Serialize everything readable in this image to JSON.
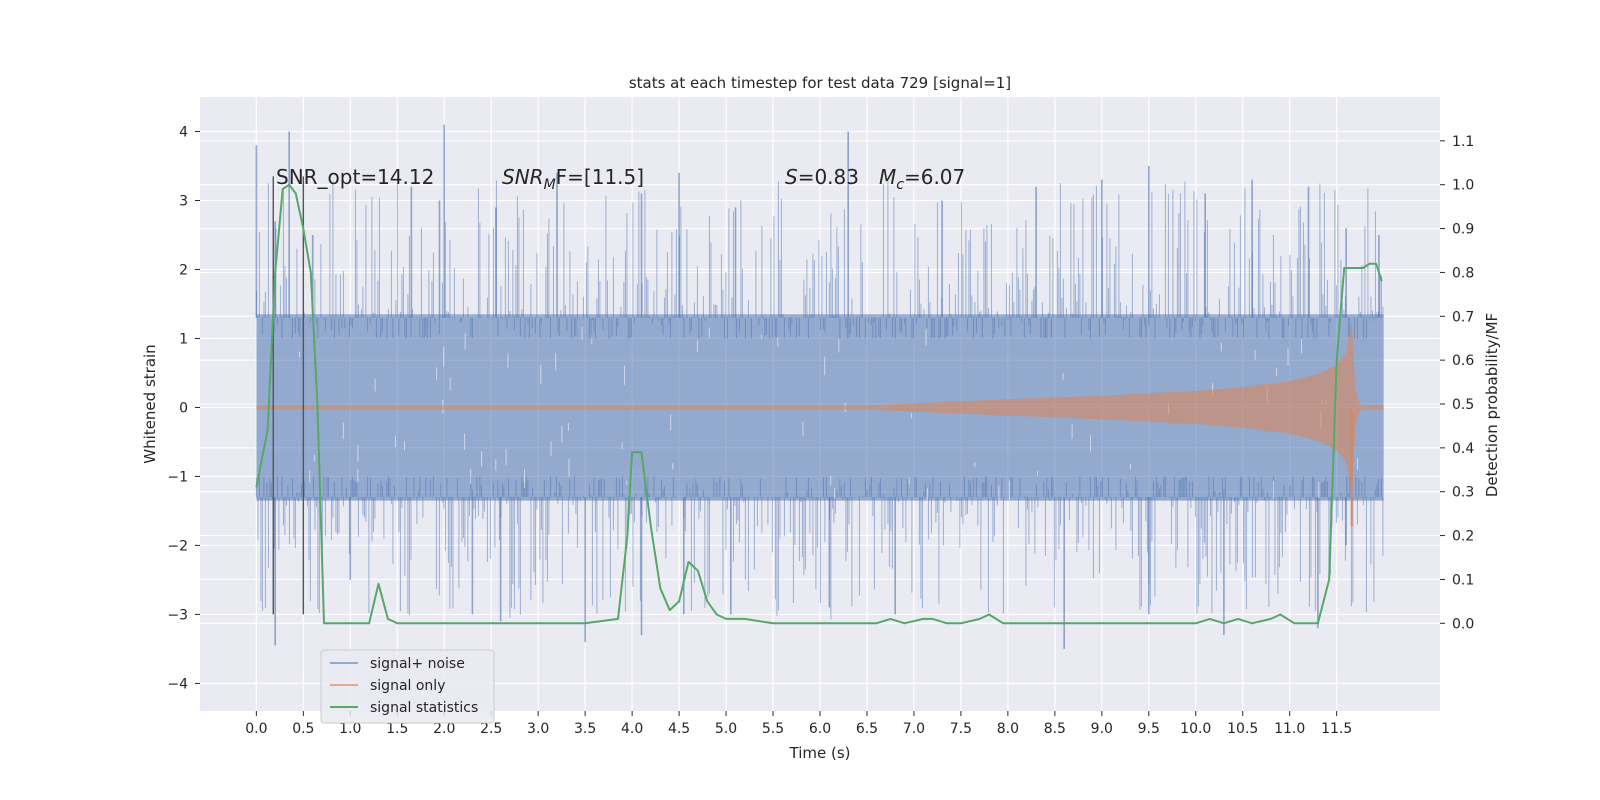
{
  "chart_data": {
    "type": "line",
    "title": "stats at each timestep for test data 729 [signal=1]",
    "xlabel": "Time (s)",
    "ylabel_left": "Whitened strain",
    "ylabel_right": "Detection probability/MF",
    "xlim": [
      -0.6,
      12.6
    ],
    "ylim_left": [
      -4.4,
      4.5
    ],
    "ylim_right": [
      -0.2,
      1.2
    ],
    "x_ticks": [
      "0.0",
      "0.5",
      "1.0",
      "1.5",
      "2.0",
      "2.5",
      "3.0",
      "3.5",
      "4.0",
      "4.5",
      "5.0",
      "5.5",
      "6.0",
      "6.5",
      "7.0",
      "7.5",
      "8.0",
      "8.5",
      "9.0",
      "9.5",
      "10.0",
      "10.5",
      "11.0",
      "11.5"
    ],
    "y_ticks_left": [
      4,
      3,
      2,
      1,
      0,
      -1,
      -2,
      -3,
      -4
    ],
    "y_ticks_right": [
      "1.1",
      "1.0",
      "0.9",
      "0.8",
      "0.7",
      "0.6",
      "0.5",
      "0.4",
      "0.3",
      "0.2",
      "0.1",
      "0.0"
    ],
    "grid": true,
    "annotations": {
      "snr_opt": "SNR_opt=14.12",
      "snr_mf_label": "SNR",
      "snr_mf_sub": "M",
      "snr_mf_rest": "F=[11.5]",
      "s_label": "S",
      "s_value": "=0.83",
      "mc_label": "M",
      "mc_sub": "c",
      "mc_value": "=6.07"
    },
    "vertical_markers": [
      0.18,
      0.5
    ],
    "legend": {
      "placement": "lower-left",
      "entries": [
        "signal+ noise",
        "signal only",
        "signal statistics"
      ]
    },
    "series": [
      {
        "name": "signal+ noise",
        "color": "#4c72b0",
        "t_range": [
          0.0,
          12.0
        ],
        "band": [
          -1.35,
          1.35
        ],
        "spikes_up": [
          [
            0.0,
            3.8
          ],
          [
            0.2,
            2.7
          ],
          [
            0.35,
            4.0
          ],
          [
            0.6,
            2.5
          ],
          [
            1.65,
            3.2
          ],
          [
            1.95,
            3.0
          ],
          [
            2.0,
            4.1
          ],
          [
            2.55,
            2.9
          ],
          [
            3.2,
            3.4
          ],
          [
            4.1,
            3.1
          ],
          [
            4.5,
            3.4
          ],
          [
            5.1,
            2.9
          ],
          [
            6.3,
            4.0
          ],
          [
            7.3,
            3.0
          ],
          [
            8.3,
            3.2
          ],
          [
            9.0,
            3.3
          ],
          [
            9.5,
            3.5
          ],
          [
            10.1,
            3.1
          ],
          [
            10.6,
            3.3
          ],
          [
            11.2,
            3.2
          ],
          [
            11.6,
            2.6
          ],
          [
            11.95,
            2.5
          ]
        ],
        "spikes_down": [
          [
            0.2,
            -3.0
          ],
          [
            0.2,
            -3.45
          ],
          [
            1.0,
            -2.5
          ],
          [
            2.3,
            -3.0
          ],
          [
            2.6,
            -3.1
          ],
          [
            3.5,
            -3.4
          ],
          [
            4.1,
            -3.3
          ],
          [
            4.55,
            -3.0
          ],
          [
            5.05,
            -3.0
          ],
          [
            6.1,
            -2.9
          ],
          [
            6.8,
            -3.0
          ],
          [
            8.6,
            -3.5
          ],
          [
            9.5,
            -3.0
          ],
          [
            10.3,
            -3.3
          ],
          [
            11.3,
            -3.2
          ],
          [
            11.6,
            -2.0
          ]
        ]
      },
      {
        "name": "signal only",
        "color": "#dd8452",
        "t": [
          0.0,
          6.5,
          7.0,
          8.0,
          9.0,
          10.0,
          10.5,
          11.0,
          11.3,
          11.5,
          11.6,
          11.66,
          11.7,
          11.75,
          12.0
        ],
        "envelope": [
          0.03,
          0.03,
          0.06,
          0.12,
          0.17,
          0.24,
          0.29,
          0.38,
          0.48,
          0.62,
          0.8,
          1.25,
          0.25,
          0.04,
          0.03
        ],
        "min_spike": [
          11.66,
          -1.72
        ]
      },
      {
        "name": "signal statistics",
        "color": "#55a868",
        "axis": "right",
        "x": [
          0.0,
          0.12,
          0.2,
          0.28,
          0.35,
          0.42,
          0.5,
          0.58,
          0.65,
          0.72,
          0.8,
          1.0,
          1.2,
          1.3,
          1.4,
          1.5,
          2.0,
          2.5,
          3.0,
          3.5,
          3.85,
          3.95,
          4.0,
          4.1,
          4.2,
          4.3,
          4.4,
          4.5,
          4.6,
          4.7,
          4.8,
          4.9,
          5.0,
          5.2,
          5.5,
          6.0,
          6.3,
          6.6,
          6.75,
          6.9,
          7.1,
          7.2,
          7.35,
          7.5,
          7.7,
          7.8,
          7.95,
          8.5,
          9.0,
          9.5,
          10.0,
          10.15,
          10.3,
          10.45,
          10.6,
          10.8,
          10.9,
          11.05,
          11.2,
          11.3,
          11.42,
          11.5,
          11.58,
          11.68,
          11.78,
          11.85,
          11.92,
          11.98
        ],
        "y": [
          0.31,
          0.44,
          0.8,
          0.99,
          1.0,
          0.98,
          0.9,
          0.8,
          0.5,
          0.0,
          0.0,
          0.0,
          0.0,
          0.09,
          0.01,
          0.0,
          0.0,
          0.0,
          0.0,
          0.0,
          0.01,
          0.2,
          0.39,
          0.39,
          0.22,
          0.08,
          0.03,
          0.05,
          0.14,
          0.12,
          0.05,
          0.02,
          0.01,
          0.01,
          0.0,
          0.0,
          0.0,
          0.0,
          0.01,
          0.0,
          0.01,
          0.01,
          0.0,
          0.0,
          0.01,
          0.02,
          0.0,
          0.0,
          0.0,
          0.0,
          0.0,
          0.01,
          0.0,
          0.01,
          0.0,
          0.01,
          0.02,
          0.0,
          0.0,
          0.0,
          0.1,
          0.6,
          0.81,
          0.81,
          0.81,
          0.82,
          0.82,
          0.78
        ]
      }
    ]
  }
}
